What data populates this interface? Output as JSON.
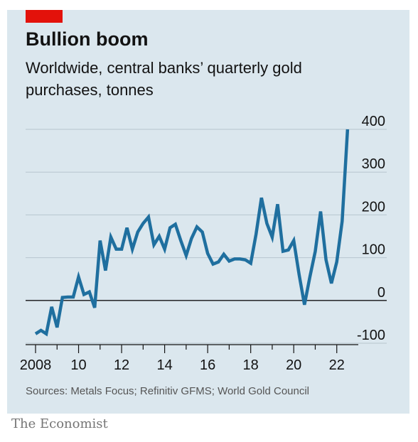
{
  "header": {
    "title": "Bullion boom",
    "subtitle": "Worldwide, central banks’ quarterly gold purchases, tonnes"
  },
  "footer": {
    "source": "Sources: Metals Focus; Refinitiv GFMS; World Gold Council",
    "brand": "The Economist"
  },
  "colors": {
    "line": "#1f6f9f",
    "accent": "#e3120b",
    "panel": "#dbe7ee"
  },
  "chart_data": {
    "type": "line",
    "title": "Bullion boom",
    "subtitle": "Worldwide, central banks’ quarterly gold purchases, tonnes",
    "y_axis_side": "right",
    "ylim": [
      -100,
      400
    ],
    "y_ticks": [
      {
        "value": 400,
        "label": "400"
      },
      {
        "value": 300,
        "label": "300"
      },
      {
        "value": 200,
        "label": "200"
      },
      {
        "value": 100,
        "label": "100"
      },
      {
        "value": 0,
        "label": "0"
      },
      {
        "value": -100,
        "label": "-100"
      }
    ],
    "xlim": [
      2008,
      2023
    ],
    "x_ticks": [
      {
        "value": 2008,
        "label": "2008"
      },
      {
        "value": 2010,
        "label": "10"
      },
      {
        "value": 2012,
        "label": "12"
      },
      {
        "value": 2014,
        "label": "14"
      },
      {
        "value": 2016,
        "label": "16"
      },
      {
        "value": 2018,
        "label": "18"
      },
      {
        "value": 2020,
        "label": "20"
      },
      {
        "value": 2022,
        "label": "22"
      }
    ],
    "series": [
      {
        "x": [
          2008.0,
          2008.25,
          2008.5,
          2008.75,
          2009.0,
          2009.25,
          2009.5,
          2009.75,
          2010.0,
          2010.25,
          2010.5,
          2010.75,
          2011.0,
          2011.25,
          2011.5,
          2011.75,
          2012.0,
          2012.25,
          2012.5,
          2012.75,
          2013.0,
          2013.25,
          2013.5,
          2013.75,
          2014.0,
          2014.25,
          2014.5,
          2014.75,
          2015.0,
          2015.25,
          2015.5,
          2015.75,
          2016.0,
          2016.25,
          2016.5,
          2016.75,
          2017.0,
          2017.25,
          2017.5,
          2017.75,
          2018.0,
          2018.25,
          2018.5,
          2018.75,
          2019.0,
          2019.25,
          2019.5,
          2019.75,
          2020.0,
          2020.25,
          2020.5,
          2020.75,
          2021.0,
          2021.25,
          2021.5,
          2021.75,
          2022.0,
          2022.25,
          2022.5
        ],
        "values": [
          -78,
          -70,
          -78,
          -15,
          -63,
          7,
          8,
          8,
          55,
          14,
          20,
          -17,
          140,
          70,
          148,
          120,
          120,
          170,
          120,
          160,
          180,
          195,
          130,
          150,
          120,
          170,
          178,
          140,
          105,
          145,
          172,
          160,
          110,
          85,
          90,
          108,
          92,
          97,
          97,
          95,
          87,
          155,
          240,
          180,
          148,
          225,
          115,
          118,
          140,
          60,
          -10,
          55,
          115,
          208,
          95,
          40,
          90,
          185,
          400
        ]
      }
    ]
  }
}
